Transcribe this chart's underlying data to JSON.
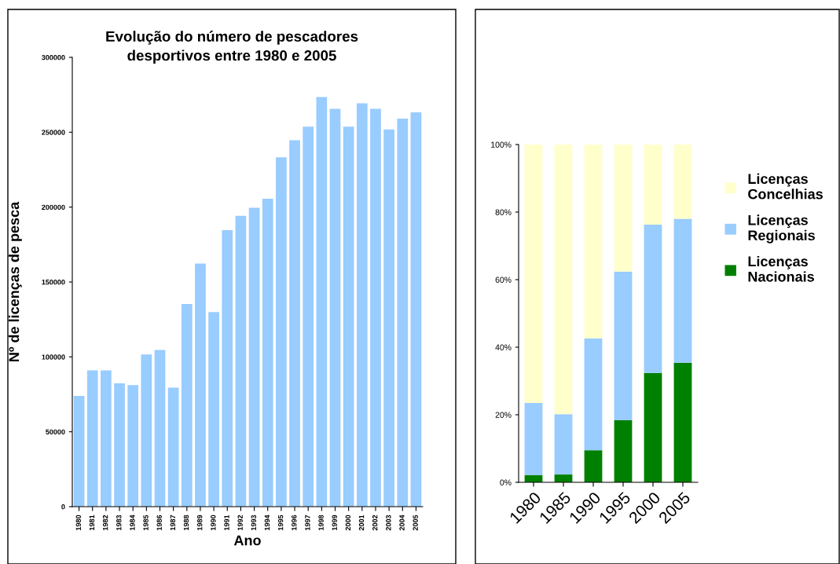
{
  "chart_data": [
    {
      "type": "bar",
      "title": "Evolução do número de pescadores desportivos entre 1980 e 2005",
      "xlabel": "Ano",
      "ylabel": "Nº de licenças de pesca",
      "categories": [
        "1980",
        "1981",
        "1982",
        "1983",
        "1984",
        "1985",
        "1986",
        "1987",
        "1988",
        "1989",
        "1990",
        "1991",
        "1992",
        "1993",
        "1994",
        "1995",
        "1996",
        "1997",
        "1998",
        "1999",
        "2000",
        "2001",
        "2002",
        "2003",
        "2004",
        "2005"
      ],
      "values": [
        74000,
        91000,
        91000,
        82400,
        81200,
        101600,
        104600,
        79400,
        135300,
        162300,
        129900,
        184600,
        194200,
        199600,
        205600,
        233300,
        244700,
        253700,
        273500,
        265700,
        253700,
        269300,
        265700,
        251900,
        259100,
        263300
      ],
      "color": "#99ccff",
      "ylim": [
        0,
        300000
      ],
      "yticks": [
        0,
        50000,
        100000,
        150000,
        200000,
        250000,
        300000
      ],
      "grid": false,
      "legend": false
    },
    {
      "type": "bar",
      "stacked": true,
      "categories": [
        "1980",
        "1985",
        "1990",
        "1995",
        "2000",
        "2005"
      ],
      "series": [
        {
          "name": "Licenças Nacionais",
          "color": "#008000",
          "values": [
            2.1,
            2.3,
            9.5,
            18.4,
            32.4,
            35.4
          ]
        },
        {
          "name": "Licenças Regionais",
          "color": "#99ccff",
          "values": [
            21.4,
            17.9,
            33.1,
            44.0,
            43.9,
            42.6
          ]
        },
        {
          "name": "Licenças Concelhias",
          "color": "#ffffcc",
          "values": [
            76.5,
            79.8,
            57.4,
            37.6,
            23.7,
            22.0
          ]
        }
      ],
      "ylim": [
        0,
        100
      ],
      "yticks": [
        {
          "value": 0,
          "label": "0%"
        },
        {
          "value": 20,
          "label": "20%"
        },
        {
          "value": 40,
          "label": "40%"
        },
        {
          "value": 60,
          "label": "60%"
        },
        {
          "value": 80,
          "label": "80%"
        },
        {
          "value": 100,
          "label": "100%"
        }
      ],
      "grid": false,
      "legend": "right"
    }
  ]
}
